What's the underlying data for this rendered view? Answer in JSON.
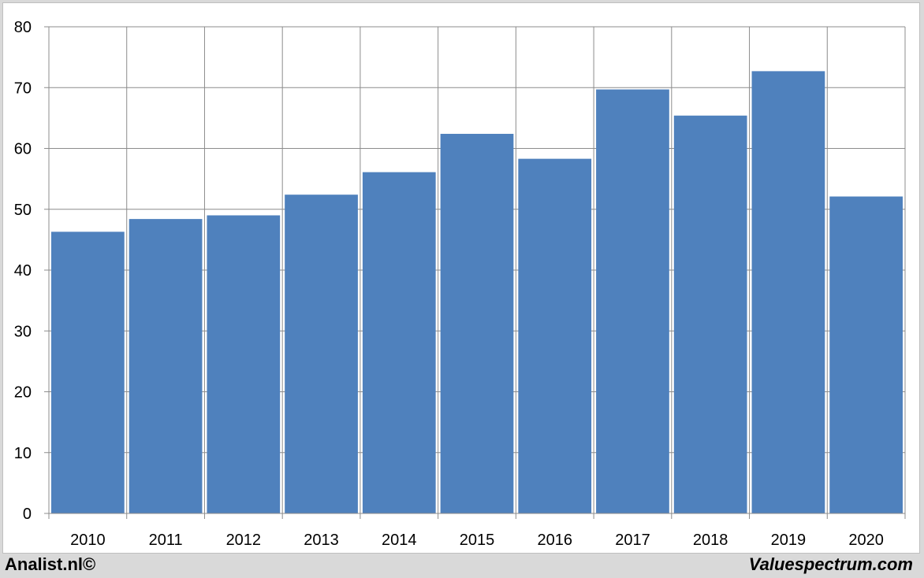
{
  "chart_data": {
    "type": "bar",
    "title": "",
    "xlabel": "",
    "ylabel": "",
    "categories": [
      "2010",
      "2011",
      "2012",
      "2013",
      "2014",
      "2015",
      "2016",
      "2017",
      "2018",
      "2019",
      "2020"
    ],
    "values": [
      46.3,
      48.4,
      49.0,
      52.4,
      56.1,
      62.4,
      58.3,
      69.7,
      65.4,
      72.7,
      52.1
    ],
    "ylim": [
      0,
      80
    ],
    "yticks": [
      0,
      10,
      20,
      30,
      40,
      50,
      60,
      70,
      80
    ],
    "grid": true,
    "bar_color": "#4f81bd",
    "grid_color": "#8c8c8c"
  },
  "footer": {
    "left": "Analist.nl©",
    "right": "Valuespectrum.com"
  }
}
